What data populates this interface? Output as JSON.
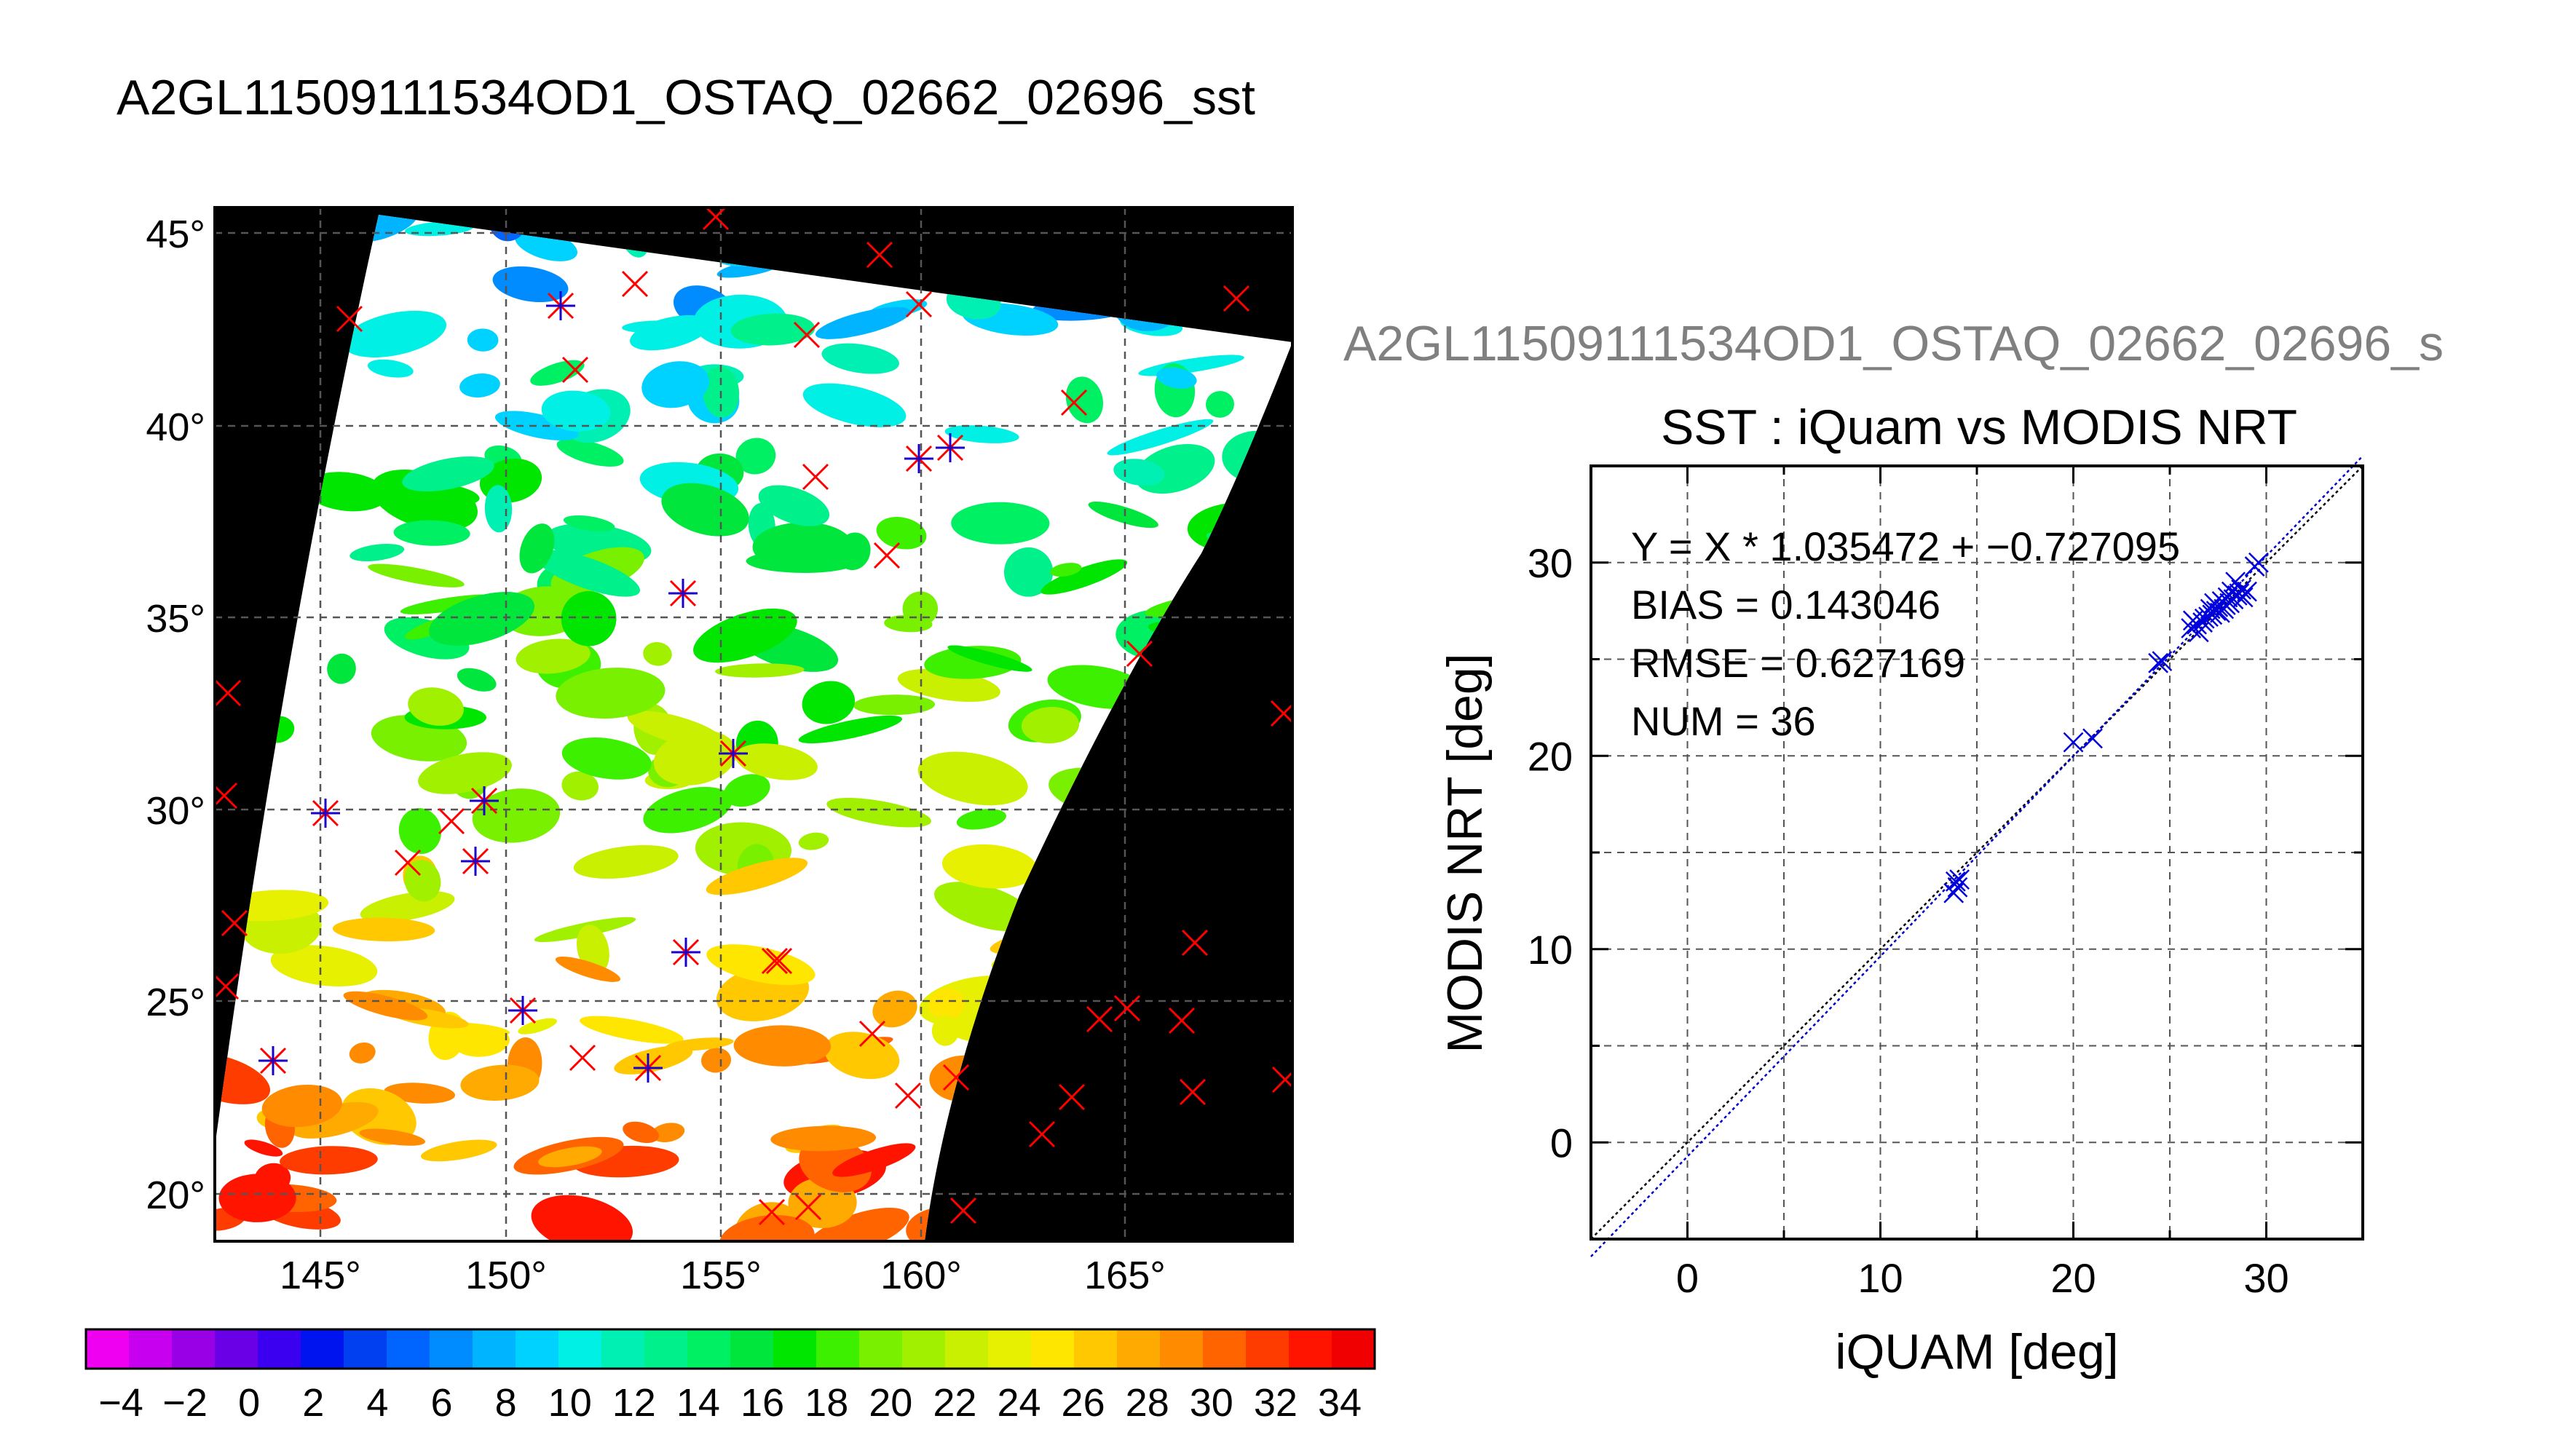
{
  "page": {
    "title": "A2GL11509111534OD1_OSTAQ_02662_02696_sst"
  },
  "map": {
    "lon_labels": [
      "145°",
      "150°",
      "155°",
      "160°",
      "165°"
    ],
    "lat_labels": [
      "45°",
      "40°",
      "35°",
      "30°",
      "25°",
      "20°"
    ]
  },
  "colorbar": {
    "labels": [
      "−4",
      "−2",
      "0",
      "2",
      "4",
      "6",
      "8",
      "10",
      "12",
      "14",
      "16",
      "18",
      "20",
      "22",
      "24",
      "26",
      "28",
      "30",
      "32",
      "34"
    ],
    "colors": [
      "#f000f0",
      "#c800f0",
      "#9a00e6",
      "#6a00e6",
      "#3c00f0",
      "#0014f0",
      "#0040f0",
      "#0064ff",
      "#008cff",
      "#00b4ff",
      "#00d2ff",
      "#00f0e6",
      "#00f0b4",
      "#00f08c",
      "#00f064",
      "#00e63c",
      "#00e600",
      "#3cf000",
      "#78f000",
      "#a0f000",
      "#c8f000",
      "#e6f000",
      "#ffe600",
      "#ffc800",
      "#ffaa00",
      "#ff8c00",
      "#ff6400",
      "#ff3c00",
      "#ff1400",
      "#f00000"
    ]
  },
  "scatter_subtitle": "A2GL11509111534OD1_OSTAQ_02662_02696_s",
  "stats": {
    "equation": "Y = X * 1.035472 + −0.727095",
    "bias": "BIAS = 0.143046",
    "rmse": "RMSE = 0.627169",
    "num": "NUM = 36"
  },
  "chart_data": {
    "type": "scatter",
    "title": "SST : iQuam vs MODIS NRT",
    "xlabel": "iQUAM [deg]",
    "ylabel": "MODIS NRT [deg]",
    "xlim": [
      -5,
      35
    ],
    "ylim": [
      -5,
      35
    ],
    "x_ticks": [
      0,
      10,
      20,
      30
    ],
    "y_ticks": [
      0,
      10,
      20,
      30
    ],
    "x_tick_labels": [
      "0",
      "10",
      "20",
      "30"
    ],
    "y_tick_labels": [
      "0",
      "10",
      "20",
      "30"
    ],
    "grid": true,
    "series": [
      {
        "points": [
          [
            13.9,
            13.5
          ],
          [
            14.0,
            13.2
          ],
          [
            13.8,
            12.9
          ],
          [
            14.1,
            13.6
          ],
          [
            20.0,
            20.7
          ],
          [
            21.0,
            20.9
          ],
          [
            24.4,
            24.8
          ],
          [
            24.6,
            24.9
          ],
          [
            26.1,
            26.6
          ],
          [
            26.2,
            27.0
          ],
          [
            26.4,
            26.8
          ],
          [
            26.5,
            26.4
          ],
          [
            26.7,
            26.9
          ],
          [
            26.8,
            27.1
          ],
          [
            27.0,
            27.2
          ],
          [
            27.1,
            27.6
          ],
          [
            27.2,
            27.3
          ],
          [
            27.3,
            27.9
          ],
          [
            27.4,
            27.5
          ],
          [
            27.5,
            27.7
          ],
          [
            27.6,
            27.4
          ],
          [
            27.7,
            28.0
          ],
          [
            27.8,
            27.6
          ],
          [
            27.9,
            27.8
          ],
          [
            28.0,
            28.2
          ],
          [
            28.1,
            27.9
          ],
          [
            28.2,
            28.5
          ],
          [
            28.3,
            28.1
          ],
          [
            28.4,
            29.0
          ],
          [
            28.5,
            28.3
          ],
          [
            28.6,
            28.4
          ],
          [
            28.7,
            28.6
          ],
          [
            28.8,
            28.2
          ],
          [
            29.0,
            28.5
          ],
          [
            29.4,
            29.8
          ],
          [
            29.6,
            30.0
          ]
        ]
      }
    ],
    "fit_line": {
      "slope": 1.035472,
      "intercept": -0.727095
    }
  }
}
